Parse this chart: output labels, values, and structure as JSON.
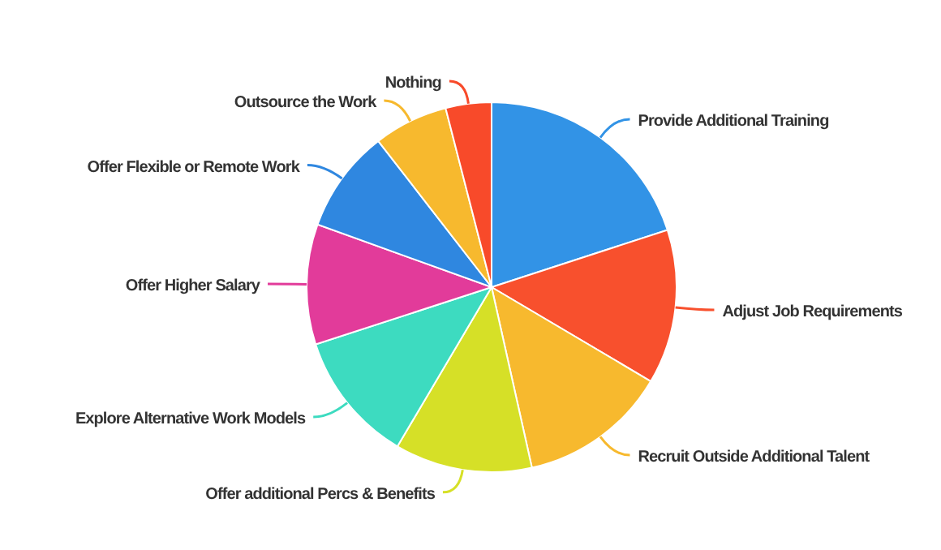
{
  "chart_data": {
    "type": "pie",
    "categories": [
      "Provide Additional Training",
      "Adjust Job Requirements",
      "Recruit Outside Additional Talent",
      "Offer additional Percs & Benefits",
      "Explore Alternative Work Models",
      "Offer Higher Salary",
      "Offer Flexible or Remote Work",
      "Outsource the Work",
      "Nothing"
    ],
    "values": [
      20,
      13.5,
      13,
      12,
      11.5,
      10.5,
      9,
      6.5,
      4
    ],
    "colors": [
      "#3293e6",
      "#f8502d",
      "#f7b92e",
      "#d6e027",
      "#3ddbc0",
      "#e23b9a",
      "#2f87e0",
      "#f7b92e",
      "#f84a2a"
    ],
    "legend": false
  }
}
